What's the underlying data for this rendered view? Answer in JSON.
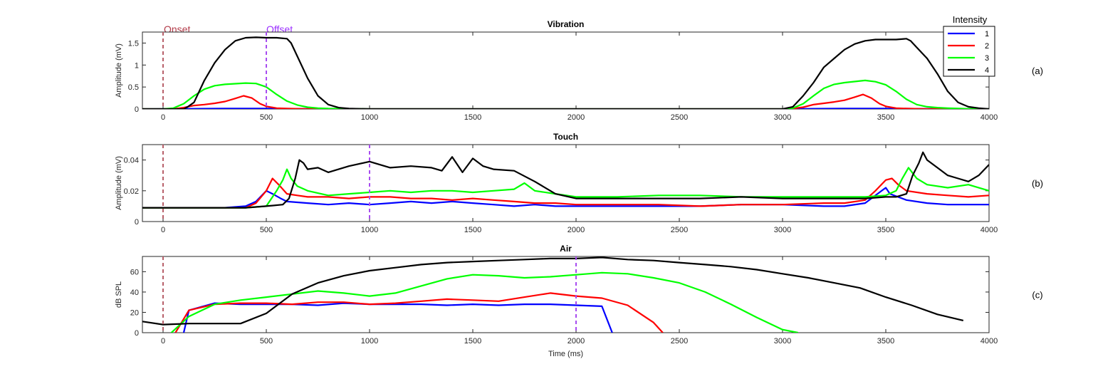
{
  "annotations": {
    "onset": "Onset",
    "offset": "Offset"
  },
  "legend": {
    "title": "Intensity",
    "entries": [
      {
        "label": "1",
        "color": "#0000FF"
      },
      {
        "label": "2",
        "color": "#FF0000"
      },
      {
        "label": "3",
        "color": "#00FF00"
      },
      {
        "label": "4",
        "color": "#000000"
      }
    ]
  },
  "colors": {
    "onset_line": "#B8606A",
    "offset_line": "#A84CF0",
    "onset_text": "#B23A48",
    "offset_text": "#9B30FF"
  },
  "chart_data": [
    {
      "type": "line",
      "panel_label": "(a)",
      "title": "Vibration",
      "xlabel": "",
      "ylabel": "Amplitude (mV)",
      "xlim": [
        -100,
        4000
      ],
      "ylim": [
        0,
        1.75
      ],
      "xticks": [
        0,
        500,
        1000,
        1500,
        2000,
        2500,
        3000,
        3500,
        4000
      ],
      "yticks": [
        0,
        0.5,
        1,
        1.5
      ],
      "ytick_labels": [
        "0",
        "0.5",
        "1",
        "1.5"
      ],
      "onset_x": 0,
      "offset_x": 500,
      "series": [
        {
          "name": "1",
          "color": "#0000FF",
          "x": [
            -100,
            100,
            300,
            500,
            700,
            1000,
            3000,
            3100,
            3300,
            3500,
            3700,
            4000
          ],
          "y": [
            0,
            0.005,
            0.01,
            0.01,
            0.005,
            0,
            0,
            0.005,
            0.01,
            0.01,
            0.005,
            0
          ]
        },
        {
          "name": "2",
          "color": "#FF0000",
          "x": [
            -100,
            50,
            100,
            150,
            200,
            250,
            300,
            350,
            390,
            430,
            470,
            500,
            550,
            600,
            700,
            1000,
            3000,
            3050,
            3100,
            3150,
            3200,
            3250,
            3300,
            3350,
            3390,
            3430,
            3470,
            3500,
            3550,
            3600,
            3700,
            4000
          ],
          "y": [
            0,
            0,
            0.03,
            0.08,
            0.1,
            0.13,
            0.17,
            0.24,
            0.3,
            0.25,
            0.12,
            0.06,
            0.02,
            0.01,
            0,
            0,
            0,
            0.01,
            0.04,
            0.1,
            0.13,
            0.16,
            0.2,
            0.27,
            0.33,
            0.25,
            0.12,
            0.06,
            0.02,
            0.01,
            0,
            0
          ]
        },
        {
          "name": "3",
          "color": "#00FF00",
          "x": [
            -100,
            0,
            50,
            100,
            150,
            200,
            250,
            300,
            400,
            450,
            500,
            550,
            600,
            650,
            700,
            750,
            800,
            900,
            1000,
            3000,
            3050,
            3100,
            3150,
            3200,
            3250,
            3300,
            3400,
            3450,
            3500,
            3550,
            3600,
            3650,
            3700,
            3750,
            3800,
            3900,
            4000
          ],
          "y": [
            0,
            0,
            0.02,
            0.12,
            0.3,
            0.45,
            0.53,
            0.56,
            0.59,
            0.58,
            0.5,
            0.33,
            0.18,
            0.09,
            0.04,
            0.02,
            0.01,
            0.005,
            0,
            0,
            0.02,
            0.12,
            0.3,
            0.47,
            0.56,
            0.6,
            0.65,
            0.62,
            0.55,
            0.4,
            0.22,
            0.1,
            0.05,
            0.03,
            0.02,
            0.005,
            0
          ]
        },
        {
          "name": "4",
          "color": "#000000",
          "x": [
            -100,
            100,
            120,
            150,
            200,
            250,
            300,
            350,
            400,
            450,
            500,
            550,
            600,
            620,
            650,
            700,
            750,
            800,
            850,
            900,
            1000,
            3000,
            3050,
            3100,
            3150,
            3200,
            3250,
            3300,
            3350,
            3400,
            3450,
            3500,
            3550,
            3600,
            3620,
            3650,
            3700,
            3750,
            3800,
            3850,
            3900,
            3950,
            4000
          ],
          "y": [
            0,
            0,
            0.05,
            0.15,
            0.65,
            1.05,
            1.35,
            1.55,
            1.62,
            1.63,
            1.62,
            1.62,
            1.6,
            1.5,
            1.2,
            0.7,
            0.3,
            0.1,
            0.03,
            0.01,
            0,
            0,
            0.05,
            0.3,
            0.6,
            0.95,
            1.15,
            1.35,
            1.48,
            1.55,
            1.58,
            1.58,
            1.58,
            1.6,
            1.55,
            1.4,
            1.15,
            0.8,
            0.4,
            0.15,
            0.05,
            0.02,
            0
          ]
        }
      ]
    },
    {
      "type": "line",
      "panel_label": "(b)",
      "title": "Touch",
      "xlabel": "",
      "ylabel": "Amplitude (mV)",
      "xlim": [
        -100,
        4000
      ],
      "ylim": [
        0,
        0.05
      ],
      "xticks": [
        0,
        500,
        1000,
        1500,
        2000,
        2500,
        3000,
        3500,
        4000
      ],
      "yticks": [
        0,
        0.02,
        0.04
      ],
      "ytick_labels": [
        "0",
        "0.02",
        "0.04"
      ],
      "onset_x": 0,
      "offset_x": 1000,
      "series": [
        {
          "name": "1",
          "color": "#0000FF",
          "x": [
            -100,
            0,
            100,
            200,
            300,
            400,
            450,
            500,
            530,
            570,
            600,
            700,
            800,
            900,
            1000,
            1100,
            1200,
            1300,
            1400,
            1500,
            1600,
            1700,
            1800,
            1900,
            2000,
            2200,
            2400,
            2600,
            2800,
            3000,
            3200,
            3300,
            3400,
            3480,
            3500,
            3520,
            3600,
            3700,
            3800,
            3900,
            4000
          ],
          "y": [
            0.009,
            0.009,
            0.009,
            0.009,
            0.009,
            0.01,
            0.013,
            0.02,
            0.018,
            0.015,
            0.013,
            0.012,
            0.011,
            0.012,
            0.011,
            0.012,
            0.013,
            0.012,
            0.013,
            0.012,
            0.011,
            0.01,
            0.011,
            0.01,
            0.01,
            0.01,
            0.01,
            0.01,
            0.011,
            0.011,
            0.01,
            0.01,
            0.012,
            0.02,
            0.022,
            0.018,
            0.014,
            0.012,
            0.011,
            0.011,
            0.011
          ]
        },
        {
          "name": "2",
          "color": "#FF0000",
          "x": [
            -100,
            0,
            100,
            200,
            300,
            400,
            450,
            500,
            530,
            560,
            600,
            650,
            700,
            800,
            900,
            1000,
            1100,
            1200,
            1300,
            1400,
            1500,
            1600,
            1700,
            1800,
            1900,
            2000,
            2200,
            2400,
            2600,
            2800,
            3000,
            3200,
            3300,
            3400,
            3450,
            3500,
            3530,
            3560,
            3600,
            3700,
            3800,
            3900,
            4000
          ],
          "y": [
            0.009,
            0.009,
            0.009,
            0.009,
            0.009,
            0.009,
            0.012,
            0.02,
            0.028,
            0.024,
            0.018,
            0.017,
            0.016,
            0.016,
            0.015,
            0.016,
            0.016,
            0.015,
            0.015,
            0.014,
            0.015,
            0.014,
            0.013,
            0.012,
            0.012,
            0.011,
            0.011,
            0.011,
            0.01,
            0.011,
            0.011,
            0.012,
            0.012,
            0.014,
            0.02,
            0.027,
            0.028,
            0.024,
            0.02,
            0.018,
            0.017,
            0.016,
            0.017
          ]
        },
        {
          "name": "3",
          "color": "#00FF00",
          "x": [
            -100,
            0,
            100,
            200,
            300,
            400,
            500,
            550,
            580,
            600,
            620,
            650,
            700,
            800,
            900,
            1000,
            1100,
            1200,
            1300,
            1400,
            1500,
            1600,
            1700,
            1750,
            1800,
            1900,
            2000,
            2200,
            2400,
            2600,
            2800,
            3000,
            3200,
            3400,
            3500,
            3550,
            3580,
            3610,
            3650,
            3700,
            3800,
            3900,
            4000
          ],
          "y": [
            0.009,
            0.009,
            0.009,
            0.009,
            0.009,
            0.009,
            0.01,
            0.02,
            0.027,
            0.034,
            0.028,
            0.023,
            0.02,
            0.017,
            0.018,
            0.019,
            0.02,
            0.019,
            0.02,
            0.02,
            0.019,
            0.02,
            0.021,
            0.025,
            0.02,
            0.018,
            0.016,
            0.016,
            0.017,
            0.017,
            0.016,
            0.016,
            0.016,
            0.016,
            0.017,
            0.02,
            0.028,
            0.035,
            0.028,
            0.024,
            0.022,
            0.024,
            0.02
          ]
        },
        {
          "name": "4",
          "color": "#000000",
          "x": [
            -100,
            0,
            100,
            200,
            300,
            400,
            500,
            580,
            610,
            640,
            660,
            680,
            700,
            750,
            800,
            900,
            1000,
            1100,
            1200,
            1300,
            1350,
            1400,
            1450,
            1500,
            1550,
            1600,
            1700,
            1800,
            1900,
            2000,
            2200,
            2400,
            2600,
            2800,
            3000,
            3200,
            3400,
            3500,
            3550,
            3600,
            3630,
            3660,
            3680,
            3700,
            3750,
            3800,
            3850,
            3900,
            3950,
            4000
          ],
          "y": [
            0.009,
            0.009,
            0.009,
            0.009,
            0.009,
            0.009,
            0.01,
            0.011,
            0.015,
            0.028,
            0.04,
            0.038,
            0.034,
            0.035,
            0.032,
            0.036,
            0.039,
            0.035,
            0.036,
            0.035,
            0.033,
            0.042,
            0.032,
            0.041,
            0.036,
            0.034,
            0.033,
            0.026,
            0.018,
            0.015,
            0.015,
            0.015,
            0.015,
            0.016,
            0.015,
            0.015,
            0.015,
            0.016,
            0.016,
            0.018,
            0.03,
            0.038,
            0.045,
            0.04,
            0.035,
            0.03,
            0.028,
            0.026,
            0.03,
            0.037
          ]
        }
      ]
    },
    {
      "type": "line",
      "panel_label": "(c)",
      "title": "Air",
      "xlabel": "Time (ms)",
      "ylabel": "dB SPL",
      "xlim": [
        -100,
        4000
      ],
      "ylim": [
        0,
        75
      ],
      "xticks": [
        0,
        500,
        1000,
        1500,
        2000,
        2500,
        3000,
        3500,
        4000
      ],
      "yticks": [
        0,
        20,
        40,
        60
      ],
      "ytick_labels": [
        "0",
        "20",
        "40",
        "60"
      ],
      "onset_x": 0,
      "offset_x": 2000,
      "series": [
        {
          "name": "1",
          "color": "#0000FF",
          "x": [
            100,
            125,
            250,
            375,
            500,
            625,
            750,
            875,
            1000,
            1125,
            1250,
            1375,
            1500,
            1625,
            1750,
            1875,
            2000,
            2125,
            2175
          ],
          "y": [
            0,
            22,
            29,
            28,
            28,
            28,
            27,
            29,
            28,
            28,
            28,
            27,
            28,
            27,
            28,
            28,
            27,
            26,
            0
          ]
        },
        {
          "name": "2",
          "color": "#FF0000",
          "x": [
            60,
            125,
            250,
            375,
            500,
            625,
            750,
            875,
            1000,
            1125,
            1250,
            1375,
            1500,
            1625,
            1750,
            1875,
            2000,
            2125,
            2250,
            2375,
            2420
          ],
          "y": [
            0,
            22,
            28,
            29,
            29,
            28,
            30,
            30,
            28,
            29,
            31,
            33,
            32,
            31,
            35,
            39,
            36,
            34,
            27,
            10,
            0
          ]
        },
        {
          "name": "3",
          "color": "#00FF00",
          "x": [
            40,
            125,
            250,
            375,
            500,
            625,
            750,
            875,
            1000,
            1125,
            1250,
            1375,
            1500,
            1625,
            1750,
            1875,
            2000,
            2125,
            2250,
            2375,
            2500,
            2625,
            2750,
            2875,
            3000,
            3075
          ],
          "y": [
            0,
            16,
            28,
            32,
            35,
            38,
            41,
            39,
            36,
            39,
            46,
            53,
            57,
            56,
            54,
            55,
            57,
            59,
            58,
            54,
            49,
            40,
            28,
            15,
            3,
            0
          ]
        },
        {
          "name": "4",
          "color": "#000000",
          "x": [
            -100,
            0,
            125,
            250,
            375,
            500,
            625,
            750,
            875,
            1000,
            1125,
            1250,
            1375,
            1500,
            1625,
            1750,
            1875,
            2000,
            2125,
            2250,
            2375,
            2500,
            2625,
            2750,
            2875,
            3000,
            3125,
            3250,
            3375,
            3500,
            3625,
            3750,
            3875
          ],
          "y": [
            11,
            8,
            9,
            9,
            9,
            19,
            38,
            49,
            56,
            61,
            64,
            67,
            69,
            70,
            71,
            72,
            73,
            73,
            74,
            72,
            71,
            69,
            67,
            65,
            62,
            58,
            54,
            49,
            44,
            35,
            27,
            18,
            12
          ]
        }
      ]
    }
  ]
}
